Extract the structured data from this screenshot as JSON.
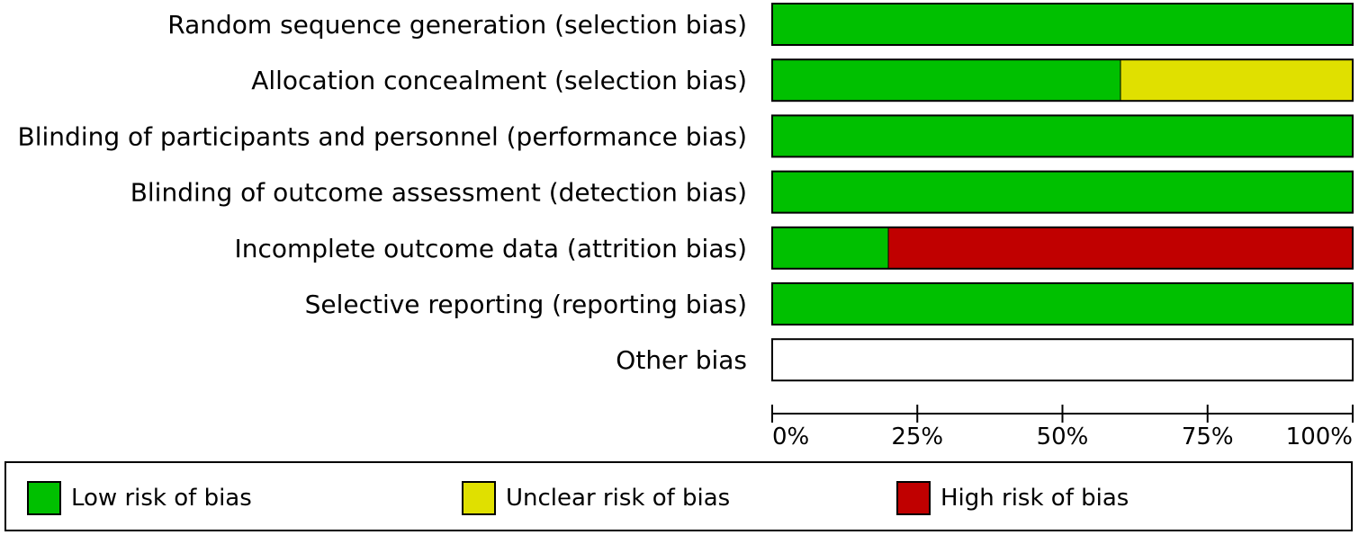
{
  "chart_data": {
    "type": "bar",
    "stacked": true,
    "orientation": "horizontal",
    "categories": [
      "Random sequence generation (selection bias)",
      "Allocation concealment (selection bias)",
      "Blinding of participants and personnel (performance bias)",
      "Blinding of outcome assessment (detection bias)",
      "Incomplete outcome data (attrition bias)",
      "Selective reporting (reporting bias)",
      "Other bias"
    ],
    "series": [
      {
        "name": "Low risk of bias",
        "color": "#00c000",
        "values": [
          100,
          60,
          100,
          100,
          20,
          100,
          0
        ]
      },
      {
        "name": "Unclear risk of bias",
        "color": "#e0e000",
        "values": [
          0,
          40,
          0,
          0,
          0,
          0,
          0
        ]
      },
      {
        "name": "High risk of bias",
        "color": "#c00000",
        "values": [
          0,
          0,
          0,
          0,
          80,
          0,
          0
        ]
      }
    ],
    "xlim": [
      0,
      100
    ],
    "ticks": [
      "0%",
      "25%",
      "50%",
      "75%",
      "100%"
    ],
    "legend_position": "bottom"
  }
}
